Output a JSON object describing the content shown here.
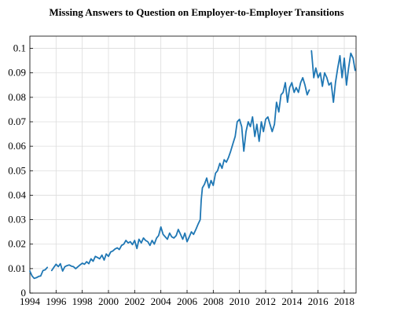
{
  "chart_data": {
    "type": "line",
    "title": "Missing Answers to Question on Employer-to-Employer Transitions",
    "xlabel": "",
    "ylabel": "",
    "xlim": [
      1994,
      2018.9
    ],
    "ylim": [
      0,
      0.105
    ],
    "grid": true,
    "legend": "none",
    "line_color": "#1f77b4",
    "xticks": [
      "1994",
      "1996",
      "1998",
      "2000",
      "2002",
      "2004",
      "2006",
      "2008",
      "2010",
      "2012",
      "2014",
      "2016",
      "2018"
    ],
    "yticks": [
      "0",
      "0.01",
      "0.02",
      "0.03",
      "0.04",
      "0.05",
      "0.06",
      "0.07",
      "0.08",
      "0.09",
      "0.1"
    ],
    "series": [
      {
        "segments": [
          {
            "x": [
              1994.0,
              1994.17,
              1994.33,
              1994.5,
              1994.67,
              1994.83,
              1995.0,
              1995.17,
              1995.33
            ],
            "y": [
              0.009,
              0.007,
              0.006,
              0.0063,
              0.0068,
              0.007,
              0.0092,
              0.0095,
              0.0105
            ]
          },
          {
            "x": [
              1995.67,
              1995.83,
              1996.0,
              1996.17,
              1996.33,
              1996.5,
              1996.67,
              1996.83,
              1997.0,
              1997.17,
              1997.33,
              1997.5,
              1997.67,
              1997.83,
              1998.0,
              1998.17,
              1998.33,
              1998.5,
              1998.67,
              1998.83,
              1999.0,
              1999.17,
              1999.33,
              1999.5,
              1999.67,
              1999.83,
              2000.0,
              2000.17,
              2000.33,
              2000.5,
              2000.67,
              2000.83,
              2001.0,
              2001.17,
              2001.33,
              2001.5,
              2001.67,
              2001.83,
              2002.0,
              2002.17,
              2002.33,
              2002.5,
              2002.67,
              2002.83,
              2003.0,
              2003.17,
              2003.33,
              2003.5,
              2003.67,
              2003.83,
              2004.0,
              2004.17,
              2004.33,
              2004.5,
              2004.67,
              2004.83,
              2005.0,
              2005.17,
              2005.33,
              2005.5,
              2005.67,
              2005.83,
              2006.0,
              2006.17,
              2006.33,
              2006.5,
              2006.67,
              2006.83,
              2007.0,
              2007.08,
              2007.17,
              2007.33,
              2007.5,
              2007.67,
              2007.83,
              2008.0,
              2008.17,
              2008.33,
              2008.5,
              2008.67,
              2008.83,
              2009.0,
              2009.17,
              2009.33,
              2009.5,
              2009.67,
              2009.83,
              2010.0,
              2010.17,
              2010.33,
              2010.5,
              2010.67,
              2010.83,
              2011.0,
              2011.17,
              2011.33,
              2011.5,
              2011.67,
              2011.83,
              2012.0,
              2012.17,
              2012.33,
              2012.5,
              2012.67,
              2012.83,
              2013.0,
              2013.17,
              2013.33,
              2013.5,
              2013.67,
              2013.83,
              2014.0,
              2014.17,
              2014.33,
              2014.5,
              2014.67,
              2014.83,
              2015.0,
              2015.17,
              2015.33
            ],
            "y": [
              0.0092,
              0.0105,
              0.0118,
              0.0108,
              0.012,
              0.009,
              0.0108,
              0.0112,
              0.0115,
              0.011,
              0.0108,
              0.01,
              0.0108,
              0.0115,
              0.0122,
              0.0118,
              0.0128,
              0.012,
              0.014,
              0.013,
              0.015,
              0.0145,
              0.014,
              0.0155,
              0.0135,
              0.016,
              0.015,
              0.0168,
              0.0172,
              0.018,
              0.0185,
              0.0178,
              0.0195,
              0.02,
              0.0215,
              0.0205,
              0.021,
              0.0198,
              0.0215,
              0.0182,
              0.022,
              0.0205,
              0.0225,
              0.0215,
              0.021,
              0.0195,
              0.0215,
              0.02,
              0.0225,
              0.0235,
              0.027,
              0.024,
              0.023,
              0.022,
              0.0245,
              0.023,
              0.0225,
              0.0235,
              0.026,
              0.024,
              0.022,
              0.0245,
              0.021,
              0.023,
              0.025,
              0.024,
              0.026,
              0.028,
              0.03,
              0.038,
              0.043,
              0.0445,
              0.047,
              0.043,
              0.046,
              0.044,
              0.049,
              0.05,
              0.053,
              0.051,
              0.0545,
              0.0535,
              0.0555,
              0.058,
              0.061,
              0.064,
              0.07,
              0.071,
              0.068,
              0.058,
              0.066,
              0.07,
              0.068,
              0.072,
              0.064,
              0.069,
              0.062,
              0.07,
              0.066,
              0.071,
              0.072,
              0.069,
              0.066,
              0.069,
              0.078,
              0.074,
              0.081,
              0.082,
              0.086,
              0.078,
              0.084,
              0.086,
              0.082,
              0.084,
              0.082,
              0.086,
              0.088,
              0.085,
              0.081,
              0.083
            ]
          },
          {
            "x": [
              2015.5,
              2015.67,
              2015.83,
              2016.0,
              2016.17,
              2016.33,
              2016.5,
              2016.67,
              2016.83,
              2017.0,
              2017.17,
              2017.33,
              2017.5,
              2017.67,
              2017.83,
              2018.0,
              2018.17,
              2018.33,
              2018.5,
              2018.67,
              2018.83
            ],
            "y": [
              0.099,
              0.088,
              0.092,
              0.088,
              0.09,
              0.0845,
              0.09,
              0.088,
              0.085,
              0.086,
              0.078,
              0.086,
              0.092,
              0.097,
              0.088,
              0.096,
              0.085,
              0.092,
              0.098,
              0.096,
              0.091
            ]
          }
        ]
      }
    ]
  }
}
